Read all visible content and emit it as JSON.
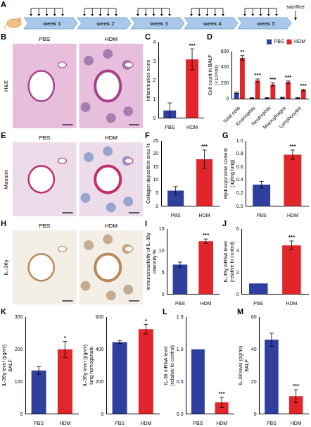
{
  "timeline": {
    "panel": "A",
    "weeks": [
      "week 1",
      "week 2",
      "week 3",
      "week 4",
      "week 5"
    ],
    "doses_per_week": 5,
    "end_label": "sacrifice"
  },
  "images": [
    {
      "panel": "B",
      "stain": "H&E",
      "groups": [
        "PBS",
        "HDM"
      ]
    },
    {
      "panel": "E",
      "stain": "Masson",
      "groups": [
        "PBS",
        "HDM"
      ]
    },
    {
      "panel": "H",
      "stain": "IL-36γ",
      "groups": [
        "PBS",
        "HDM"
      ]
    }
  ],
  "chart_data": [
    {
      "type": "bar",
      "panel": "C",
      "categories": [
        "PBS",
        "HDM"
      ],
      "values": [
        0.4,
        3.1
      ],
      "errors": [
        0.4,
        0.55
      ],
      "significance": [
        null,
        "***"
      ],
      "colors": [
        "#2e3f9e",
        "#e0262a"
      ],
      "ylabel": "Inflammation score",
      "ylim": [
        0,
        4
      ],
      "yticks": [
        0,
        1,
        2,
        3,
        4
      ],
      "grid": false
    },
    {
      "type": "bar",
      "panel": "D",
      "categories": [
        "Total cells",
        "Eosinophils",
        "Neutrophils",
        "Macrophages",
        "Lymphocytes"
      ],
      "series": [
        {
          "name": "PBS",
          "color": "#2e3f9e",
          "values": [
            75,
            10,
            10,
            15,
            10
          ],
          "errors": [
            8,
            3,
            3,
            3,
            3
          ],
          "significance": [
            null,
            null,
            null,
            null,
            null
          ]
        },
        {
          "name": "HDM",
          "color": "#e0262a",
          "values": [
            520,
            230,
            180,
            210,
            110
          ],
          "errors": [
            30,
            20,
            20,
            15,
            10
          ],
          "significance": [
            "**",
            "***",
            "***",
            "***",
            "***"
          ]
        }
      ],
      "ylabel": [
        "Cell count in BALF",
        "(×10⁴/ml)"
      ],
      "ylim": [
        0,
        600
      ],
      "yticks": [
        0,
        200,
        400,
        600
      ],
      "grid": false,
      "legend": "top right"
    },
    {
      "type": "bar",
      "panel": "F",
      "categories": [
        "PBS",
        "HDM"
      ],
      "values": [
        6,
        18
      ],
      "errors": [
        1.5,
        3.5
      ],
      "significance": [
        null,
        "***"
      ],
      "colors": [
        "#2e3f9e",
        "#e0262a"
      ],
      "ylabel": "Collagen deposition area %",
      "ylim": [
        0,
        25
      ],
      "yticks": [
        0,
        5,
        10,
        15,
        20,
        25
      ],
      "grid": false
    },
    {
      "type": "bar",
      "panel": "G",
      "categories": [
        "PBS",
        "HDM"
      ],
      "values": [
        0.33,
        0.79
      ],
      "errors": [
        0.05,
        0.07
      ],
      "significance": [
        null,
        "***"
      ],
      "colors": [
        "#2e3f9e",
        "#e0262a"
      ],
      "ylabel": [
        "Hydroxyproline content",
        "(ug/mg lung)"
      ],
      "ylim": [
        0,
        1
      ],
      "yticks": [
        {
          "value": 0,
          "label": "0.0"
        },
        0.2,
        0.4,
        0.6,
        0.8,
        {
          "value": 1,
          "label": "1.0"
        }
      ],
      "grid": false
    },
    {
      "type": "bar",
      "panel": "I",
      "categories": [
        "PBS",
        "HDM"
      ],
      "values": [
        6.8,
        12.2
      ],
      "errors": [
        0.6,
        0.5
      ],
      "significance": [
        null,
        "***"
      ],
      "colors": [
        "#2e3f9e",
        "#e0262a"
      ],
      "ylabel": [
        "Immunoreactivity of IL-36γ",
        "intensity %"
      ],
      "ylim": [
        0,
        15
      ],
      "yticks": [
        0,
        5,
        10,
        15
      ],
      "grid": false
    },
    {
      "type": "bar",
      "panel": "J",
      "categories": [
        "PBS",
        "HDM"
      ],
      "values": [
        1.0,
        4.5
      ],
      "errors": [
        0,
        0.4
      ],
      "significance": [
        null,
        "***"
      ],
      "colors": [
        "#2e3f9e",
        "#e0262a"
      ],
      "ylabel": [
        "IL-36γ mRNA level",
        "(relative to control)"
      ],
      "ylim": [
        0,
        6
      ],
      "yticks": [
        0,
        2,
        4,
        6
      ],
      "grid": false
    },
    {
      "type": "bar",
      "panel": "K",
      "categories": [
        "PBS",
        "HDM"
      ],
      "values": [
        135,
        200
      ],
      "errors": [
        12,
        25
      ],
      "significance": [
        null,
        "*"
      ],
      "colors": [
        "#2e3f9e",
        "#e0262a"
      ],
      "ylabel": [
        "IL-36γ level (pg/ml)",
        "BALF"
      ],
      "ylim": [
        0,
        300
      ],
      "yticks": [
        0,
        100,
        200,
        300
      ],
      "grid": false
    },
    {
      "type": "bar",
      "categories": [
        "PBS",
        "HDM"
      ],
      "values": [
        445,
        525
      ],
      "errors": [
        10,
        30
      ],
      "significance": [
        null,
        "*"
      ],
      "colors": [
        "#2e3f9e",
        "#e0262a"
      ],
      "ylabel": [
        "IL-36γ level (pg/ml)",
        "lung homogenate"
      ],
      "ylim": [
        0,
        600
      ],
      "yticks": [
        0,
        200,
        400,
        600
      ],
      "grid": false
    },
    {
      "type": "bar",
      "panel": "L",
      "categories": [
        "PBS",
        "HDM"
      ],
      "values": [
        1.0,
        0.18
      ],
      "errors": [
        0,
        0.08
      ],
      "significance": [
        null,
        "***"
      ],
      "colors": [
        "#2e3f9e",
        "#e0262a"
      ],
      "ylabel": [
        "IL-38 mRNA level",
        "(relative to control)"
      ],
      "ylim": [
        0,
        1.5
      ],
      "yticks": [
        {
          "value": 0,
          "label": "0.0"
        },
        0.5,
        {
          "value": 1,
          "label": "1.0"
        },
        1.5
      ],
      "grid": false
    },
    {
      "type": "bar",
      "panel": "M",
      "categories": [
        "PBS",
        "HDM"
      ],
      "values": [
        46,
        11
      ],
      "errors": [
        4,
        4
      ],
      "significance": [
        null,
        "***"
      ],
      "colors": [
        "#2e3f9e",
        "#e0262a"
      ],
      "ylabel": [
        "IL-38 level (pg/ml)",
        "BALF"
      ],
      "ylim": [
        0,
        60
      ],
      "yticks": [
        0,
        20,
        40,
        60
      ],
      "grid": false
    }
  ]
}
